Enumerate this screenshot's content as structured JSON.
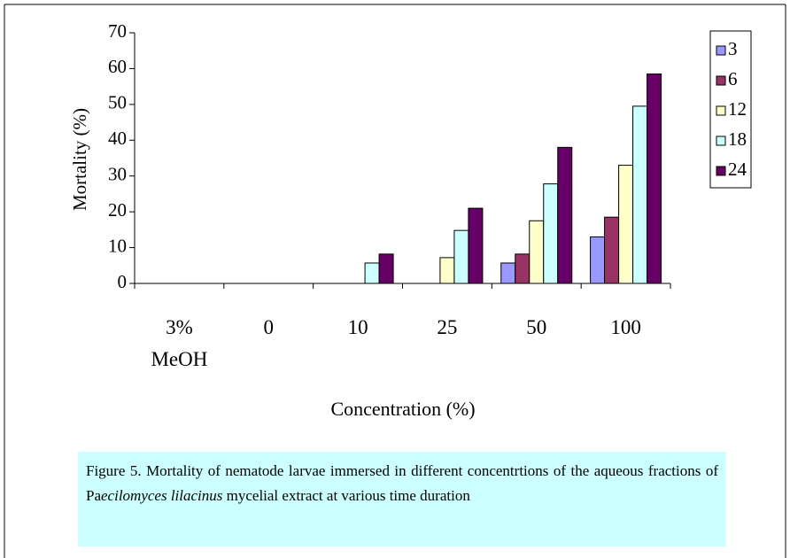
{
  "chart_data": {
    "type": "bar",
    "categories": [
      "3% MeOH",
      "0",
      "10",
      "25",
      "50",
      "100"
    ],
    "series": [
      {
        "name": "3",
        "color": "#9999ff",
        "values": [
          0,
          0,
          0,
          0,
          5.7,
          13
        ]
      },
      {
        "name": "6",
        "color": "#993366",
        "values": [
          0,
          0,
          0,
          0,
          8.2,
          18.5
        ]
      },
      {
        "name": "12",
        "color": "#ffffcc",
        "values": [
          0,
          0,
          0,
          7.2,
          17.5,
          33
        ]
      },
      {
        "name": "18",
        "color": "#ccffff",
        "values": [
          0,
          0,
          5.7,
          14.8,
          27.8,
          49.5
        ]
      },
      {
        "name": "24",
        "color": "#660066",
        "values": [
          0,
          0,
          8.2,
          21,
          38,
          58.5
        ]
      }
    ],
    "ylabel": "Mortality (%)",
    "xlabel": "Concentration (%)",
    "ylim": [
      0,
      70
    ],
    "yticks": [
      0,
      10,
      20,
      30,
      40,
      50,
      60,
      70
    ],
    "legend": "right",
    "caption": [
      "Figure 5.  Mortality of nematode larvae immersed in different concentrtions of the aqueous fractions of Pa",
      "ecilomyces lilacinus",
      " mycelial extract at various time duration"
    ]
  }
}
